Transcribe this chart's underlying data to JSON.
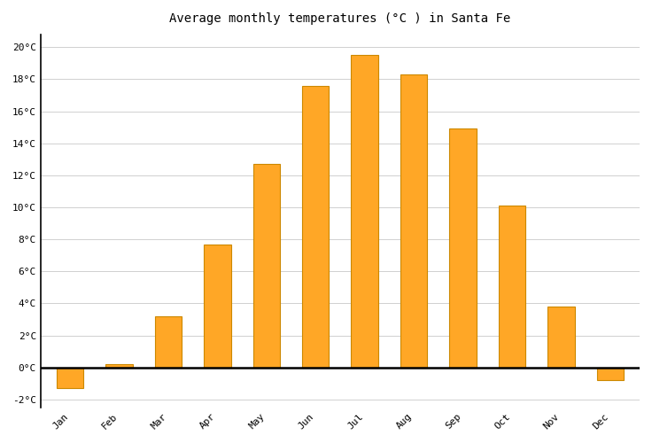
{
  "months": [
    "Jan",
    "Feb",
    "Mar",
    "Apr",
    "May",
    "Jun",
    "Jul",
    "Aug",
    "Sep",
    "Oct",
    "Nov",
    "Dec"
  ],
  "values": [
    -1.3,
    0.2,
    3.2,
    7.7,
    12.7,
    17.6,
    19.5,
    18.3,
    14.9,
    10.1,
    3.8,
    -0.8
  ],
  "title": "Average monthly temperatures (°C ) in Santa Fe",
  "bar_color": "#FFA726",
  "bar_edge_color": "#CC8800",
  "ylim": [
    -2.5,
    20.8
  ],
  "yticks": [
    -2,
    0,
    2,
    4,
    6,
    8,
    10,
    12,
    14,
    16,
    18,
    20
  ],
  "ytick_labels": [
    "-2°C",
    "0°C",
    "2°C",
    "4°C",
    "6°C",
    "8°C",
    "10°C",
    "12°C",
    "14°C",
    "16°C",
    "18°C",
    "20°C"
  ],
  "background_color": "#ffffff",
  "grid_color": "#d0d0d0",
  "title_fontsize": 10,
  "tick_fontsize": 8,
  "font_family": "monospace",
  "bar_width": 0.55
}
